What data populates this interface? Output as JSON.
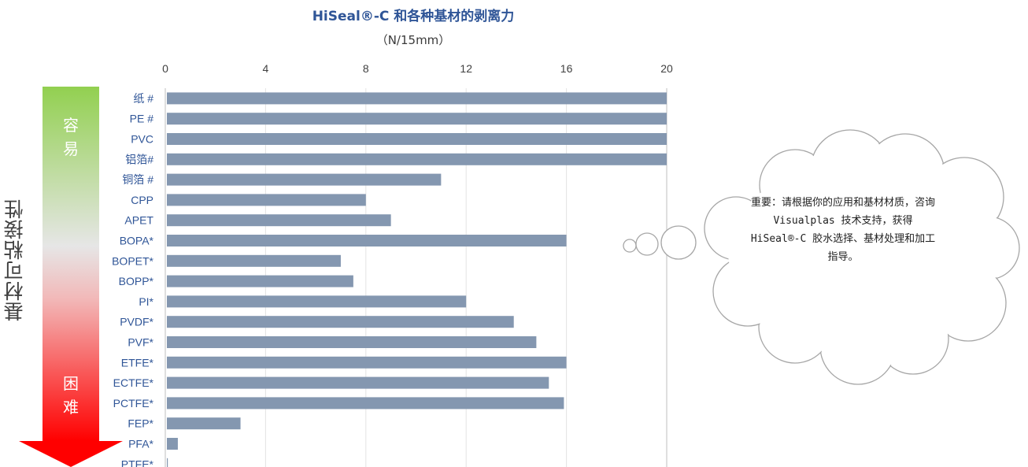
{
  "chart_data": {
    "type": "bar",
    "orientation": "horizontal",
    "title": "HiSeal®-C 和各种基材的剥离力",
    "unit": "（N/15mm）",
    "side_label": "基材可粘接性",
    "gradient_labels": {
      "easy": [
        "容",
        "易"
      ],
      "hard": [
        "困",
        "难"
      ]
    },
    "xlim": [
      0,
      20
    ],
    "xticks": [
      0,
      4,
      8,
      12,
      16,
      20
    ],
    "axis_position": "top",
    "grid": true,
    "categories": [
      "纸 #",
      "PE #",
      "PVC",
      "铝箔#",
      "铜箔 #",
      "CPP",
      "APET",
      "BOPA*",
      "BOPET*",
      "BOPP*",
      "PI*",
      "PVDF*",
      "PVF*",
      "ETFE*",
      "ECTFE*",
      "PCTFE*",
      "FEP*",
      "PFA*",
      "PTFE*"
    ],
    "values": [
      20,
      20,
      20,
      20,
      11,
      8,
      9,
      16,
      7,
      7.5,
      12,
      13.9,
      14.8,
      16,
      15.3,
      15.9,
      3,
      0.5,
      0.1
    ],
    "bar_color": "#8497b0"
  },
  "note": "重要：请根据你的应用和基材材质，咨询 Visualplas 技术支持，获得 HiSeal®-C 胶水选择、基材处理和加工指导。",
  "colors": {
    "title": "#2f5597",
    "tick": "#2f5597",
    "gradient_top": "#92d050",
    "gradient_bottom": "#ff0000",
    "cloud_stroke": "#a6a6a6"
  }
}
